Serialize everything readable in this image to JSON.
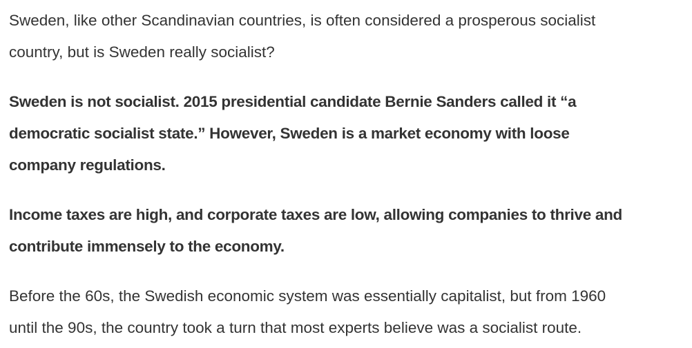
{
  "paragraphs": [
    {
      "bold": false,
      "lines": [
        "Sweden, like other Scandinavian countries, is often considered a prosperous socialist",
        "country, but is Sweden really socialist?"
      ]
    },
    {
      "bold": true,
      "lines": [
        "Sweden is not socialist. 2015 presidential candidate Bernie Sanders called it “a",
        "democratic socialist state.” However, Sweden is a market economy with loose",
        "company regulations."
      ]
    },
    {
      "bold": true,
      "lines": [
        "Income taxes are high, and corporate taxes are low, allowing companies to thrive and",
        "contribute immensely to the economy."
      ]
    },
    {
      "bold": false,
      "lines": [
        "Before the 60s, the Swedish economic system was essentially capitalist, but from 1960",
        "until the 90s, the country took a turn that most experts believe was a socialist route."
      ]
    }
  ]
}
